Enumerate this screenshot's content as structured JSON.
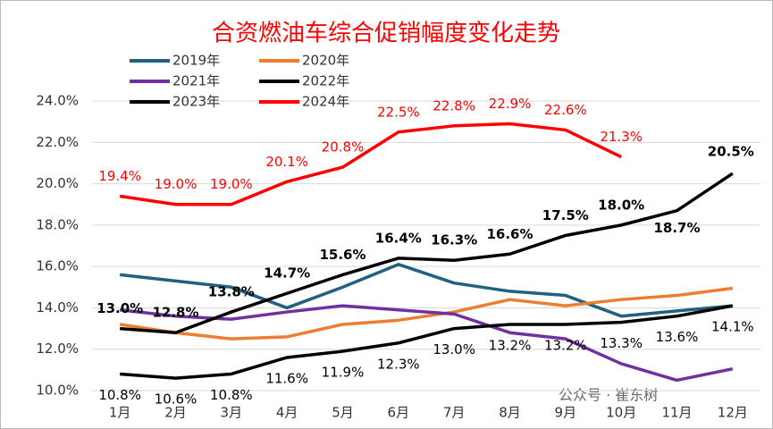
{
  "chart_data": {
    "type": "line",
    "title": "合资燃油车综合促销幅度变化走势",
    "categories": [
      "1月",
      "2月",
      "3月",
      "4月",
      "5月",
      "6月",
      "7月",
      "8月",
      "9月",
      "10月",
      "11月",
      "12月"
    ],
    "ylim": [
      10,
      24.6
    ],
    "yticks": [
      {
        "value": 10,
        "label": "10.0%"
      },
      {
        "value": 12,
        "label": "12.0%"
      },
      {
        "value": 14,
        "label": "14.0%"
      },
      {
        "value": 16,
        "label": "16.0%"
      },
      {
        "value": 18,
        "label": "18.0%"
      },
      {
        "value": 20,
        "label": "20.0%"
      },
      {
        "value": 22,
        "label": "22.0%"
      },
      {
        "value": 24,
        "label": "24.0%"
      }
    ],
    "grid": true,
    "series": [
      {
        "name": "2019年",
        "color": "#1f6180",
        "values": [
          15.6,
          15.3,
          15.0,
          14.0,
          15.0,
          16.1,
          15.2,
          14.8,
          14.6,
          13.6,
          13.85,
          14.1
        ]
      },
      {
        "name": "2020年",
        "color": "#ed7d31",
        "values": [
          13.2,
          12.8,
          12.5,
          12.6,
          13.2,
          13.4,
          13.8,
          14.4,
          14.1,
          14.4,
          14.6,
          14.95
        ]
      },
      {
        "name": "2021年",
        "color": "#7030a0",
        "values": [
          13.9,
          13.6,
          13.45,
          13.8,
          14.1,
          13.9,
          13.7,
          12.8,
          12.5,
          11.3,
          10.5,
          11.05
        ]
      },
      {
        "name": "2022年",
        "color": "#000000",
        "values": [
          13.0,
          12.8,
          13.8,
          14.7,
          15.6,
          16.4,
          16.3,
          16.6,
          17.5,
          18.0,
          18.7,
          20.5
        ],
        "value_labels": [
          "13.0%",
          "12.8%",
          "13.8%",
          "14.7%",
          "15.6%",
          "16.4%",
          "16.3%",
          "16.6%",
          "17.5%",
          "18.0%",
          "18.7%",
          "20.5%"
        ]
      },
      {
        "name": "2023年",
        "color": "#000000",
        "values": [
          10.8,
          10.6,
          10.8,
          11.6,
          11.9,
          12.3,
          13.0,
          13.2,
          13.2,
          13.3,
          13.6,
          14.1
        ],
        "value_labels": [
          "10.8%",
          "10.6%",
          "10.8%",
          "11.6%",
          "11.9%",
          "12.3%",
          "13.0%",
          "13.2%",
          "13.2%",
          "13.3%",
          "13.6%",
          "14.1%"
        ]
      },
      {
        "name": "2024年",
        "color": "#ff0000",
        "values": [
          19.4,
          19.0,
          19.0,
          20.1,
          20.8,
          22.5,
          22.8,
          22.9,
          22.6,
          21.3,
          null,
          null
        ],
        "value_labels": [
          "19.4%",
          "19.0%",
          "19.0%",
          "20.1%",
          "20.8%",
          "22.5%",
          "22.8%",
          "22.9%",
          "22.6%",
          "21.3%",
          null,
          null
        ]
      }
    ],
    "watermark": "公众号 · 崔东树"
  }
}
